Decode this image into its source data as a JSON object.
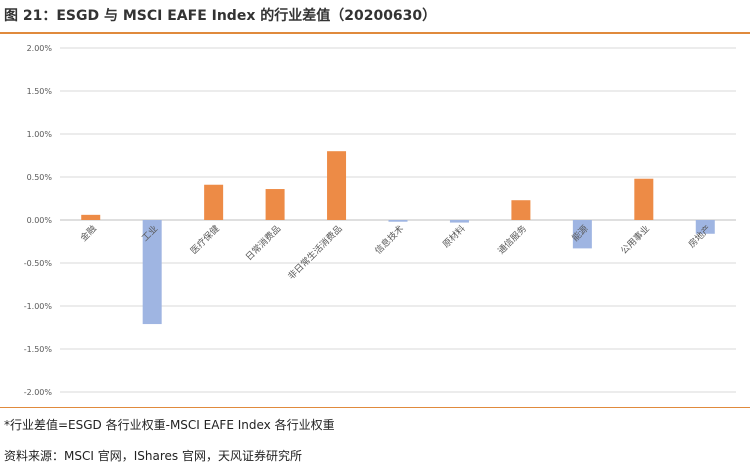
{
  "title": "图 21：ESGD 与 MSCI EAFE Index 的行业差值（20200630）",
  "note": "*行业差值=ESGD 各行业权重-MSCI EAFE Index 各行业权重",
  "source": "资料来源：MSCI 官网，IShares 官网，天风证券研究所",
  "colors": {
    "positive": "#ED8B46",
    "negative": "#9FB5E2",
    "rule": "#E08A3C",
    "grid": "#D9D9D9"
  },
  "chart_data": {
    "type": "bar",
    "categories": [
      "金融",
      "工业",
      "医疗保健",
      "日常消费品",
      "非日常生活消费品",
      "信息技术",
      "原材料",
      "通信服务",
      "能源",
      "公用事业",
      "房地产"
    ],
    "values": [
      0.06,
      -1.21,
      0.41,
      0.36,
      0.8,
      -0.02,
      -0.03,
      0.23,
      -0.33,
      0.48,
      -0.16
    ],
    "ylim": [
      -2.0,
      2.0
    ],
    "yticks": [
      2.0,
      1.5,
      1.0,
      0.5,
      0.0,
      -0.5,
      -1.0,
      -1.5,
      -2.0
    ],
    "ytick_labels": [
      "2.00%",
      "1.50%",
      "1.00%",
      "0.50%",
      "0.00%",
      "-0.50%",
      "-1.00%",
      "-1.50%",
      "-2.00%"
    ],
    "grid": true,
    "legend": "none"
  }
}
